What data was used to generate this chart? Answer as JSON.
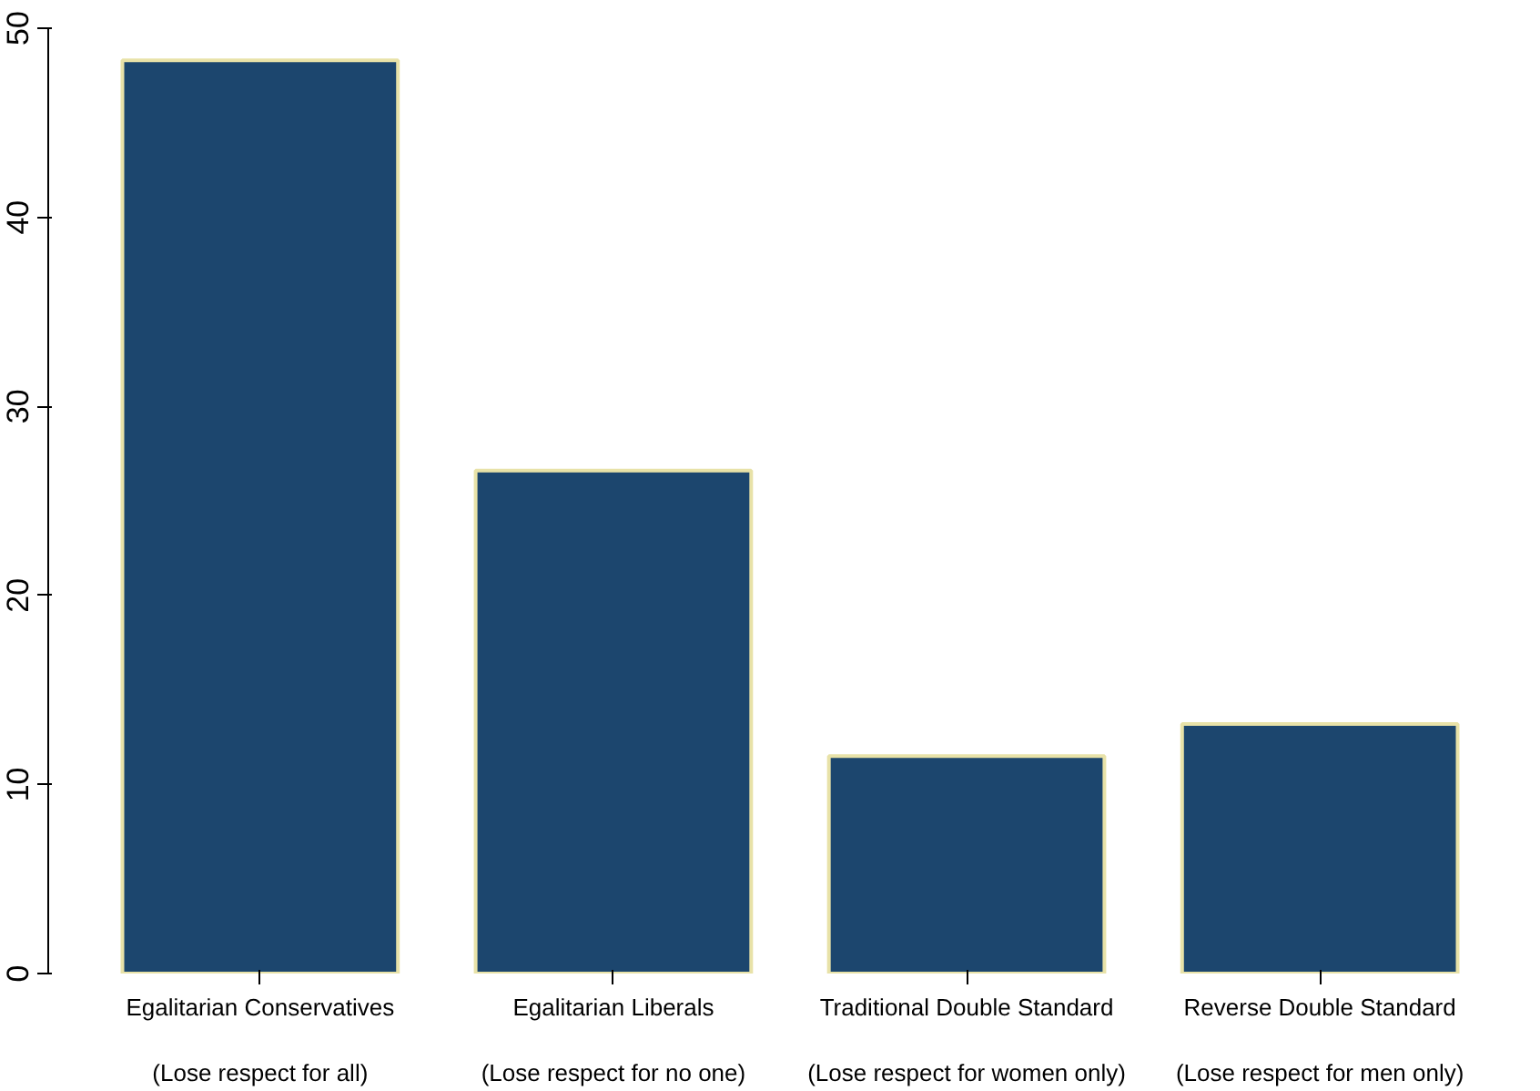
{
  "chart_data": {
    "type": "bar",
    "categories": [
      "Egalitarian Conservatives\n\n(Lose respect for all)",
      "Egalitarian Liberals\n\n(Lose respect for no one)",
      "Traditional Double Standard\n\n(Lose respect for women only)",
      "Reverse Double Standard\n\n(Lose respect for men only)"
    ],
    "values": [
      48.3,
      26.6,
      11.5,
      13.2
    ],
    "color": "#1c466e",
    "ylim": [
      0,
      50
    ],
    "yticks": [
      0,
      10,
      20,
      30,
      40,
      50
    ],
    "grid": false
  }
}
